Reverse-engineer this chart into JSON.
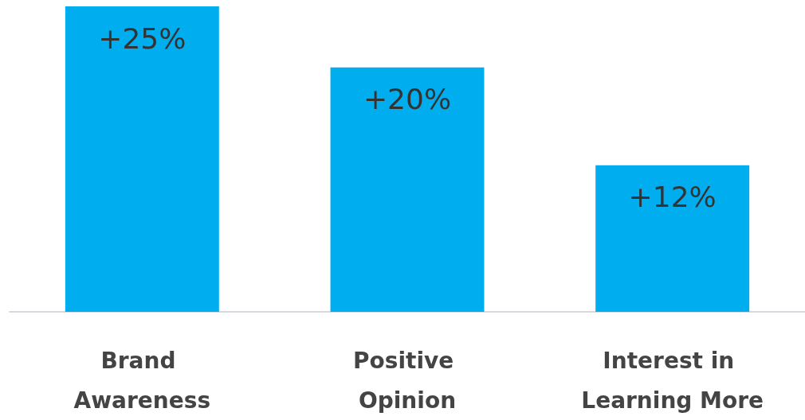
{
  "chart_data": {
    "type": "bar",
    "categories": [
      "Brand Awareness",
      "Positive Opinion",
      "Interest in Learning More"
    ],
    "values": [
      25,
      20,
      12
    ],
    "value_labels": [
      "+25%",
      "+20%",
      "+12%"
    ],
    "color": "#00aeef"
  }
}
